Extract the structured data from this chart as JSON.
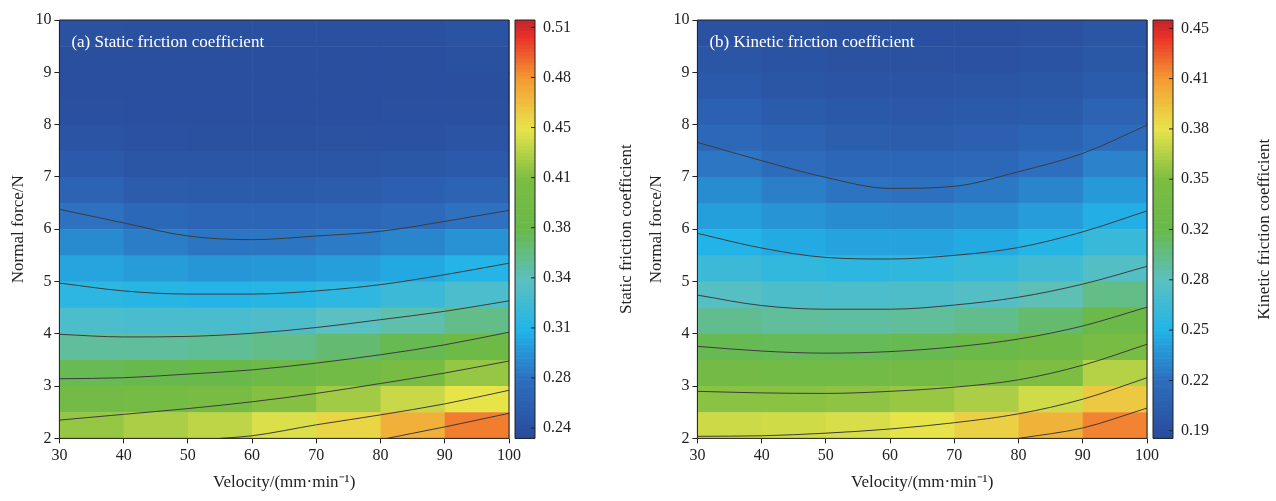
{
  "chart_data": [
    {
      "type": "heatmap",
      "title": "(a) Static friction coefficient",
      "xlabel": "Velocity/(mm·min⁻¹)",
      "ylabel": "Normal force/N",
      "clabel": "Static friction coefficient",
      "xlim": [
        30,
        100
      ],
      "xticks": [
        30,
        40,
        50,
        60,
        70,
        80,
        90,
        100
      ],
      "ylim": [
        2,
        10
      ],
      "yticks": [
        2,
        3,
        4,
        5,
        6,
        7,
        8,
        9,
        10
      ],
      "clim": [
        0.235,
        0.519
      ],
      "cticks": [
        {
          "value": 0.242,
          "label": "0.24"
        },
        {
          "value": 0.276,
          "label": "0.28"
        },
        {
          "value": 0.31,
          "label": "0.31"
        },
        {
          "value": 0.344,
          "label": "0.34"
        },
        {
          "value": 0.378,
          "label": "0.38"
        },
        {
          "value": 0.412,
          "label": "0.41"
        },
        {
          "value": 0.446,
          "label": "0.45"
        },
        {
          "value": 0.48,
          "label": "0.48"
        },
        {
          "value": 0.514,
          "label": "0.51"
        }
      ],
      "cells": [
        [
          0.242,
          0.241,
          0.241,
          0.241,
          0.241,
          0.241,
          0.244
        ],
        [
          0.24,
          0.24,
          0.24,
          0.24,
          0.24,
          0.24,
          0.241
        ],
        [
          0.24,
          0.24,
          0.24,
          0.24,
          0.24,
          0.24,
          0.24
        ],
        [
          0.241,
          0.24,
          0.24,
          0.24,
          0.24,
          0.241,
          0.241
        ],
        [
          0.245,
          0.243,
          0.241,
          0.241,
          0.242,
          0.243,
          0.245
        ],
        [
          0.252,
          0.248,
          0.246,
          0.246,
          0.247,
          0.249,
          0.252
        ],
        [
          0.262,
          0.256,
          0.253,
          0.253,
          0.255,
          0.258,
          0.262
        ],
        [
          0.276,
          0.268,
          0.264,
          0.264,
          0.266,
          0.27,
          0.276
        ],
        [
          0.289,
          0.282,
          0.278,
          0.278,
          0.281,
          0.286,
          0.293
        ],
        [
          0.301,
          0.297,
          0.294,
          0.295,
          0.298,
          0.303,
          0.31
        ],
        [
          0.315,
          0.312,
          0.31,
          0.312,
          0.316,
          0.324,
          0.333
        ],
        [
          0.333,
          0.332,
          0.332,
          0.335,
          0.342,
          0.349,
          0.359
        ],
        [
          0.353,
          0.353,
          0.355,
          0.359,
          0.366,
          0.375,
          0.388
        ],
        [
          0.374,
          0.376,
          0.379,
          0.385,
          0.394,
          0.406,
          0.419
        ],
        [
          0.396,
          0.4,
          0.406,
          0.414,
          0.423,
          0.435,
          0.445
        ],
        [
          0.419,
          0.426,
          0.432,
          0.441,
          0.452,
          0.469,
          0.487
        ]
      ],
      "series": [
        {
          "type": "line",
          "color": "#3c3c3c",
          "x": [
            30,
            40,
            50,
            60,
            70,
            80,
            90,
            100
          ],
          "values": [
            6.38,
            6.12,
            5.87,
            5.8,
            5.87,
            5.96,
            6.15,
            6.36
          ]
        },
        {
          "type": "line",
          "color": "#3c3c3c",
          "x": [
            30,
            40,
            50,
            60,
            70,
            80,
            90,
            100
          ],
          "values": [
            4.97,
            4.82,
            4.76,
            4.76,
            4.82,
            4.94,
            5.13,
            5.35
          ]
        },
        {
          "type": "line",
          "color": "#3c3c3c",
          "x": [
            30,
            40,
            50,
            60,
            70,
            80,
            90,
            100
          ],
          "values": [
            3.99,
            3.94,
            3.95,
            4.01,
            4.12,
            4.27,
            4.43,
            4.63
          ]
        },
        {
          "type": "line",
          "color": "#3c3c3c",
          "x": [
            30,
            40,
            50,
            60,
            70,
            80,
            90,
            100
          ],
          "values": [
            3.14,
            3.16,
            3.23,
            3.31,
            3.44,
            3.6,
            3.79,
            4.03
          ]
        },
        {
          "type": "line",
          "color": "#3c3c3c",
          "x": [
            30,
            40,
            50,
            60,
            70,
            80,
            90,
            100
          ],
          "values": [
            2.35,
            2.46,
            2.57,
            2.7,
            2.86,
            3.05,
            3.25,
            3.48
          ]
        },
        {
          "type": "line",
          "color": "#3c3c3c",
          "x": [
            55,
            60,
            70,
            80,
            90,
            100
          ],
          "values": [
            2.0,
            2.05,
            2.26,
            2.45,
            2.66,
            2.92
          ]
        },
        {
          "type": "line",
          "color": "#3c3c3c",
          "x": [
            81,
            90,
            100
          ],
          "values": [
            2.0,
            2.22,
            2.48
          ]
        }
      ]
    },
    {
      "type": "heatmap",
      "title": "(b) Kinetic friction coefficient",
      "xlabel": "Velocity/(mm·min⁻¹)",
      "ylabel": "Normal force/N",
      "clabel": "Kinetic friction coefficient",
      "xlim": [
        30,
        100
      ],
      "xticks": [
        30,
        40,
        50,
        60,
        70,
        80,
        90,
        100
      ],
      "ylim": [
        2,
        10
      ],
      "yticks": [
        2,
        3,
        4,
        5,
        6,
        7,
        8,
        9,
        10
      ],
      "clim": [
        0.18,
        0.452
      ],
      "cticks": [
        {
          "value": 0.185,
          "label": "0.19"
        },
        {
          "value": 0.2177,
          "label": "0.22"
        },
        {
          "value": 0.2504,
          "label": "0.25"
        },
        {
          "value": 0.2831,
          "label": "0.28"
        },
        {
          "value": 0.3158,
          "label": "0.32"
        },
        {
          "value": 0.3485,
          "label": "0.35"
        },
        {
          "value": 0.3812,
          "label": "0.38"
        },
        {
          "value": 0.4139,
          "label": "0.41"
        },
        {
          "value": 0.4466,
          "label": "0.45"
        }
      ],
      "cells": [
        [
          0.188,
          0.187,
          0.186,
          0.186,
          0.186,
          0.187,
          0.192
        ],
        [
          0.191,
          0.189,
          0.187,
          0.187,
          0.188,
          0.189,
          0.193
        ],
        [
          0.196,
          0.192,
          0.19,
          0.19,
          0.191,
          0.193,
          0.199
        ],
        [
          0.203,
          0.198,
          0.195,
          0.194,
          0.196,
          0.199,
          0.206
        ],
        [
          0.212,
          0.206,
          0.201,
          0.2,
          0.202,
          0.207,
          0.216
        ],
        [
          0.222,
          0.215,
          0.21,
          0.209,
          0.212,
          0.218,
          0.228
        ],
        [
          0.232,
          0.226,
          0.221,
          0.219,
          0.223,
          0.229,
          0.238
        ],
        [
          0.241,
          0.236,
          0.232,
          0.231,
          0.234,
          0.24,
          0.248
        ],
        [
          0.251,
          0.246,
          0.243,
          0.243,
          0.246,
          0.252,
          0.263
        ],
        [
          0.265,
          0.26,
          0.257,
          0.258,
          0.262,
          0.269,
          0.279
        ],
        [
          0.28,
          0.275,
          0.274,
          0.275,
          0.279,
          0.286,
          0.299
        ],
        [
          0.297,
          0.293,
          0.292,
          0.294,
          0.298,
          0.306,
          0.319
        ],
        [
          0.314,
          0.312,
          0.312,
          0.314,
          0.319,
          0.327,
          0.342
        ],
        [
          0.334,
          0.332,
          0.333,
          0.335,
          0.34,
          0.349,
          0.366
        ],
        [
          0.353,
          0.353,
          0.354,
          0.357,
          0.363,
          0.374,
          0.393
        ],
        [
          0.373,
          0.374,
          0.376,
          0.381,
          0.39,
          0.403,
          0.42
        ]
      ],
      "series": [
        {
          "type": "line",
          "color": "#3c3c3c",
          "x": [
            30,
            40,
            50,
            60,
            70,
            80,
            90,
            100
          ],
          "values": [
            7.66,
            7.31,
            6.99,
            6.78,
            6.82,
            7.1,
            7.45,
            7.99
          ]
        },
        {
          "type": "line",
          "color": "#3c3c3c",
          "x": [
            30,
            40,
            50,
            60,
            70,
            80,
            90,
            100
          ],
          "values": [
            5.92,
            5.64,
            5.46,
            5.43,
            5.5,
            5.65,
            5.95,
            6.35
          ]
        },
        {
          "type": "line",
          "color": "#3c3c3c",
          "x": [
            30,
            40,
            50,
            60,
            70,
            80,
            90,
            100
          ],
          "values": [
            4.74,
            4.54,
            4.47,
            4.47,
            4.55,
            4.7,
            4.95,
            5.29
          ]
        },
        {
          "type": "line",
          "color": "#3c3c3c",
          "x": [
            30,
            40,
            50,
            60,
            70,
            80,
            90,
            100
          ],
          "values": [
            3.76,
            3.67,
            3.63,
            3.66,
            3.75,
            3.9,
            4.15,
            4.51
          ]
        },
        {
          "type": "line",
          "color": "#3c3c3c",
          "x": [
            30,
            40,
            50,
            60,
            70,
            80,
            90,
            100
          ],
          "values": [
            2.9,
            2.87,
            2.86,
            2.9,
            2.98,
            3.12,
            3.4,
            3.8
          ]
        },
        {
          "type": "line",
          "color": "#3c3c3c",
          "x": [
            30,
            40,
            50,
            60,
            70,
            80,
            90,
            100
          ],
          "values": [
            2.04,
            2.05,
            2.1,
            2.18,
            2.3,
            2.47,
            2.75,
            3.16
          ]
        },
        {
          "type": "line",
          "color": "#3c3c3c",
          "x": [
            80,
            90,
            100
          ],
          "values": [
            2.0,
            2.2,
            2.58
          ]
        }
      ]
    }
  ]
}
